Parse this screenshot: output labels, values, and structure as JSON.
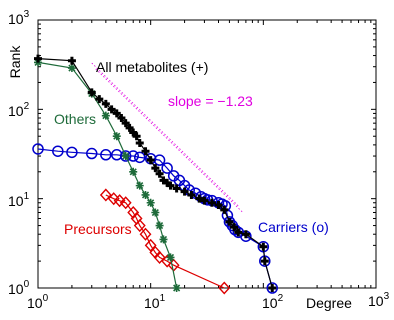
{
  "chart_data": {
    "type": "line",
    "xscale": "log",
    "yscale": "log",
    "xlim": [
      1,
      1000
    ],
    "ylim": [
      1,
      1000
    ],
    "xlabel": "Degree",
    "ylabel": "Rank",
    "grid": false,
    "legend": "none",
    "x_ticks": [
      {
        "base": "10",
        "exp": "0"
      },
      {
        "base": "10",
        "exp": "1"
      },
      {
        "base": "10",
        "exp": "2"
      },
      {
        "base": "10",
        "exp": "3"
      }
    ],
    "y_ticks": [
      {
        "base": "10",
        "exp": "0"
      },
      {
        "base": "10",
        "exp": "1"
      },
      {
        "base": "10",
        "exp": "2"
      },
      {
        "base": "10",
        "exp": "3"
      }
    ],
    "series": [
      {
        "label": "All metabolites (+)",
        "color": "#000000",
        "marker": "plus",
        "points": [
          [
            1,
            370
          ],
          [
            2,
            350
          ],
          [
            3,
            155
          ],
          [
            3.5,
            130
          ],
          [
            4,
            115
          ],
          [
            4.5,
            100
          ],
          [
            5,
            90
          ],
          [
            5.5,
            80
          ],
          [
            6,
            70
          ],
          [
            6.5,
            62
          ],
          [
            7,
            55
          ],
          [
            7.5,
            50
          ],
          [
            8,
            42
          ],
          [
            9,
            34
          ],
          [
            10,
            27
          ],
          [
            11,
            22
          ],
          [
            12,
            19
          ],
          [
            13,
            16
          ],
          [
            14,
            15
          ],
          [
            15,
            14
          ],
          [
            17,
            13
          ],
          [
            20,
            12
          ],
          [
            23,
            11
          ],
          [
            27,
            10
          ],
          [
            30,
            9.5
          ],
          [
            35,
            9
          ],
          [
            40,
            8.5
          ],
          [
            45,
            7.5
          ],
          [
            50,
            5.5
          ],
          [
            55,
            4.8
          ],
          [
            60,
            4.2
          ],
          [
            70,
            4
          ],
          [
            100,
            2.9
          ],
          [
            103,
            2
          ],
          [
            120,
            1
          ]
        ]
      },
      {
        "label": "Others",
        "color": "#1e6b3a",
        "marker": "star",
        "points": [
          [
            1,
            335
          ],
          [
            2,
            290
          ],
          [
            3,
            150
          ],
          [
            4,
            85
          ],
          [
            5,
            50
          ],
          [
            6,
            30
          ],
          [
            7,
            20
          ],
          [
            8,
            14
          ],
          [
            9,
            11
          ],
          [
            10,
            9
          ],
          [
            11,
            7
          ],
          [
            12,
            5
          ],
          [
            13,
            3.5
          ],
          [
            15,
            2.2
          ],
          [
            17,
            1
          ]
        ]
      },
      {
        "label": "Carriers (o)",
        "color": "#0000cc",
        "marker": "circle",
        "points": [
          [
            1,
            36
          ],
          [
            1.5,
            34
          ],
          [
            2,
            33
          ],
          [
            3,
            32
          ],
          [
            4,
            31
          ],
          [
            5,
            31
          ],
          [
            6,
            30
          ],
          [
            7,
            30
          ],
          [
            8,
            29
          ],
          [
            10,
            28
          ],
          [
            12,
            27
          ],
          [
            14,
            22
          ],
          [
            16,
            18
          ],
          [
            18,
            16
          ],
          [
            20,
            14
          ],
          [
            22,
            12.5
          ],
          [
            25,
            11.5
          ],
          [
            28,
            10.5
          ],
          [
            30,
            10
          ],
          [
            32,
            9.7
          ],
          [
            35,
            9.5
          ],
          [
            40,
            9
          ],
          [
            43,
            8.7
          ],
          [
            46,
            8.3
          ],
          [
            48,
            6.5
          ],
          [
            50,
            5.5
          ],
          [
            53,
            5
          ],
          [
            56,
            4.5
          ],
          [
            60,
            4.2
          ],
          [
            70,
            3.8
          ],
          [
            100,
            2.9
          ],
          [
            103,
            2
          ],
          [
            120,
            1
          ]
        ]
      },
      {
        "label": "Precursors",
        "color": "#dd0000",
        "marker": "diamond",
        "points": [
          [
            4,
            11
          ],
          [
            4.7,
            10
          ],
          [
            5.3,
            9.5
          ],
          [
            6,
            9
          ],
          [
            7,
            7
          ],
          [
            7.5,
            6
          ],
          [
            8,
            5
          ],
          [
            9,
            4
          ],
          [
            10,
            3
          ],
          [
            11,
            2.5
          ],
          [
            12,
            2.2
          ],
          [
            14,
            2
          ],
          [
            16,
            1.8
          ],
          [
            45,
            1
          ]
        ]
      }
    ],
    "annotations": [
      {
        "text": "All metabolites (+)",
        "color": "#000000"
      },
      {
        "text": "slope = −1.23",
        "color": "#e000e0"
      },
      {
        "text": "Others",
        "color": "#1e6b3a"
      },
      {
        "text": "Precursors",
        "color": "#dd0000"
      },
      {
        "text": "Carriers (o)",
        "color": "#0000cc"
      }
    ],
    "slope": {
      "value": -1.23,
      "color": "#e000e0",
      "x_range": [
        3,
        60
      ]
    }
  }
}
